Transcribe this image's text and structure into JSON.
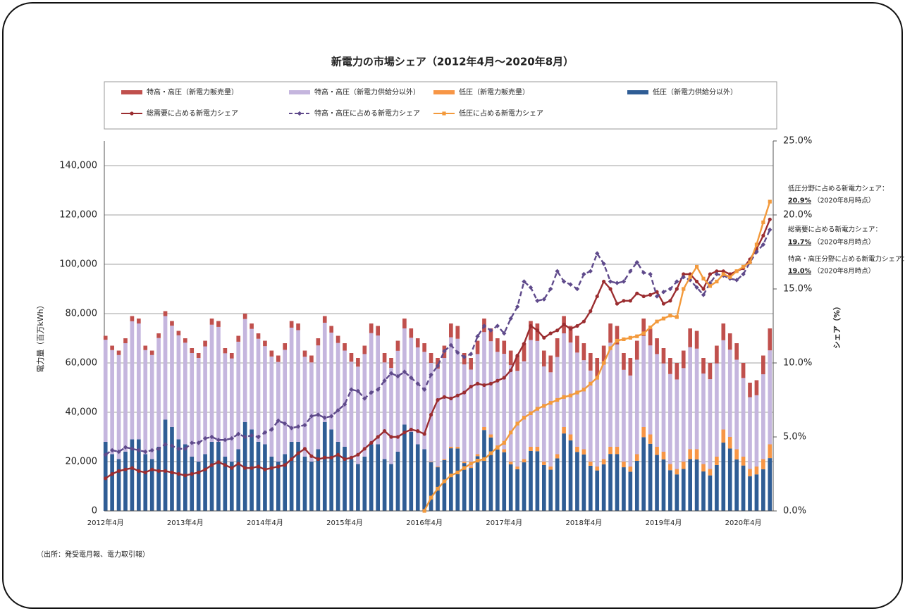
{
  "chart_data": {
    "type": "bar",
    "stacked": true,
    "title": "新電力の市場シェア（2012年4月～2020年8月）",
    "y_label": "電力量（百万kWh）",
    "y2_label": "シェア（%）",
    "source": "（出所：発受電月報、電力取引報）",
    "ylim": [
      0,
      150000
    ],
    "yticks": [
      0,
      {
        "value": 20000,
        "label": "20,000"
      },
      {
        "value": 40000,
        "label": "40,000"
      },
      {
        "value": 60000,
        "label": "60,000"
      },
      {
        "value": 80000,
        "label": "80,000"
      },
      {
        "value": 100000,
        "label": "100,000"
      },
      {
        "value": 120000,
        "label": "120,000"
      },
      {
        "value": 140000,
        "label": "140,000"
      }
    ],
    "y2lim": [
      0,
      25
    ],
    "y2ticks": [
      {
        "value": 0,
        "label": "0.0%"
      },
      {
        "value": 5,
        "label": "5.0%"
      },
      {
        "value": 10,
        "label": "10.0%"
      },
      {
        "value": 15,
        "label": "15.0%"
      },
      {
        "value": 20,
        "label": "20.0%"
      },
      {
        "value": 25,
        "label": "25.0%"
      }
    ],
    "grid": true,
    "categories": [
      "2012年4月",
      null,
      null,
      null,
      null,
      null,
      null,
      null,
      null,
      null,
      null,
      null,
      "2013年4月",
      null,
      null,
      null,
      null,
      null,
      null,
      null,
      null,
      null,
      null,
      null,
      "2014年4月",
      null,
      null,
      null,
      null,
      null,
      null,
      null,
      null,
      null,
      null,
      null,
      "2015年4月",
      null,
      null,
      null,
      null,
      null,
      null,
      null,
      null,
      null,
      null,
      null,
      "2016年4月",
      null,
      null,
      null,
      null,
      null,
      null,
      null,
      null,
      null,
      null,
      null,
      "2017年4月",
      null,
      null,
      null,
      null,
      null,
      null,
      null,
      null,
      null,
      null,
      null,
      "2018年4月",
      null,
      null,
      null,
      null,
      null,
      null,
      null,
      null,
      null,
      null,
      null,
      "2019年4月",
      null,
      null,
      null,
      null,
      null,
      null,
      null,
      null,
      null,
      null,
      null,
      "2020年4月",
      null,
      null,
      null,
      null
    ],
    "series": [
      {
        "name": "特高・高圧（新電力販売量）",
        "type": "bar",
        "color": "#c0504d",
        "values": [
          1600,
          1800,
          1800,
          2000,
          2100,
          2000,
          1800,
          1800,
          1900,
          2000,
          1900,
          1800,
          1800,
          2000,
          2000,
          2300,
          2500,
          2400,
          2100,
          2200,
          2400,
          2200,
          2200,
          2200,
          2200,
          2400,
          2600,
          2700,
          2700,
          2700,
          2500,
          2800,
          2900,
          2700,
          2700,
          2900,
          3000,
          3500,
          3500,
          3400,
          3900,
          3900,
          3800,
          4000,
          4100,
          4000,
          3800,
          3700,
          3500,
          4000,
          4300,
          5000,
          5600,
          5200,
          4600,
          4700,
          5400,
          5500,
          5200,
          5500,
          5300,
          5900,
          6200,
          7300,
          7700,
          7100,
          6400,
          6800,
          7600,
          7000,
          6700,
          6800,
          6900,
          7100,
          7700,
          7700,
          7800,
          7500,
          6800,
          7100,
          7700,
          7100,
          6900,
          6400,
          6200,
          6500,
          6700,
          7100,
          7600,
          7200,
          6300,
          6600,
          7200,
          6800,
          6600,
          6700,
          6100,
          5900,
          6100,
          7600,
          8900
        ]
      },
      {
        "name": "特高・高圧（新電力供給分以外）",
        "type": "bar",
        "color": "#c5b6de",
        "values": [
          41400,
          42200,
          42200,
          44000,
          47900,
          47000,
          42200,
          42200,
          44100,
          42000,
          41100,
          42200,
          41200,
          42000,
          42000,
          43700,
          47500,
          46600,
          41900,
          41800,
          43600,
          41800,
          40800,
          41800,
          39800,
          40600,
          40400,
          42300,
          46300,
          45300,
          40500,
          40200,
          42100,
          40300,
          39300,
          40100,
          39000,
          39500,
          39500,
          41600,
          45100,
          44100,
          39200,
          39000,
          40900,
          39000,
          38200,
          39300,
          39500,
          40000,
          39700,
          41000,
          44400,
          43800,
          39400,
          39300,
          40600,
          38500,
          37800,
          38500,
          38700,
          39100,
          38800,
          39700,
          43300,
          42900,
          38600,
          38200,
          39400,
          38000,
          37300,
          38200,
          36100,
          36900,
          36300,
          38300,
          42200,
          41500,
          37200,
          36900,
          38300,
          36900,
          36100,
          37600,
          35800,
          36500,
          36300,
          37900,
          41400,
          40800,
          36700,
          36400,
          37800,
          36200,
          35400,
          36300,
          31900,
          29100,
          28900,
          34400,
          38100
        ]
      },
      {
        "name": "低圧（新電力販売量）",
        "type": "bar",
        "color": "#f79646",
        "values": [
          0,
          0,
          0,
          0,
          0,
          0,
          0,
          0,
          0,
          0,
          0,
          0,
          0,
          0,
          0,
          0,
          0,
          0,
          0,
          0,
          0,
          0,
          0,
          0,
          0,
          0,
          0,
          0,
          0,
          0,
          0,
          0,
          0,
          0,
          0,
          0,
          0,
          0,
          0,
          0,
          0,
          0,
          0,
          0,
          0,
          0,
          0,
          0,
          0,
          200,
          300,
          400,
          600,
          700,
          600,
          600,
          800,
          1200,
          1200,
          1100,
          1200,
          1100,
          1100,
          1300,
          1700,
          1800,
          1400,
          1300,
          1700,
          2600,
          2400,
          2100,
          2100,
          1700,
          1600,
          2100,
          2900,
          3000,
          2300,
          2100,
          2700,
          4100,
          3800,
          3300,
          3100,
          2500,
          2200,
          3000,
          4000,
          4100,
          3000,
          2600,
          3400,
          5300,
          4700,
          4100,
          3600,
          2900,
          3200,
          4100,
          5600
        ]
      },
      {
        "name": "低圧（新電力供給分以外）",
        "type": "bar",
        "color": "#2f5d95",
        "values": [
          28000,
          23000,
          21000,
          24000,
          29000,
          29000,
          23000,
          21000,
          26000,
          37000,
          34000,
          29000,
          27000,
          22000,
          20000,
          23000,
          28000,
          28000,
          22000,
          20000,
          25000,
          36000,
          33000,
          28000,
          27000,
          22000,
          20000,
          23000,
          28000,
          28000,
          22000,
          20000,
          25000,
          36000,
          33000,
          28000,
          26000,
          21000,
          19000,
          22000,
          27000,
          27000,
          21000,
          19000,
          24000,
          35000,
          32000,
          27000,
          25000,
          19800,
          17700,
          20600,
          25400,
          25300,
          19400,
          17400,
          22200,
          32800,
          29800,
          24900,
          23800,
          18900,
          16900,
          19700,
          24300,
          24200,
          18600,
          16700,
          21300,
          31400,
          28600,
          23900,
          22900,
          18300,
          16400,
          18900,
          23100,
          23000,
          17700,
          15900,
          20300,
          29900,
          27200,
          22700,
          20900,
          16500,
          14800,
          17000,
          21000,
          20900,
          16000,
          14400,
          18600,
          27700,
          25300,
          20900,
          18400,
          14100,
          14800,
          16900,
          21400
        ]
      },
      {
        "name": "総需要に占める新電力シェア",
        "type": "line",
        "axis": "y2",
        "color": "#9b2d30",
        "dash": false,
        "marker": "circle",
        "values": [
          2.2,
          2.5,
          2.7,
          2.8,
          2.9,
          2.7,
          2.6,
          2.8,
          2.7,
          2.7,
          2.6,
          2.5,
          2.4,
          2.5,
          2.6,
          2.8,
          3.1,
          3.3,
          3.1,
          2.9,
          3.2,
          2.9,
          2.9,
          3.0,
          2.8,
          2.9,
          3.0,
          3.1,
          3.5,
          3.9,
          4.2,
          3.7,
          3.5,
          3.6,
          3.6,
          3.8,
          3.5,
          3.6,
          3.8,
          4.2,
          4.6,
          5.0,
          5.4,
          5.0,
          5.0,
          5.3,
          5.5,
          5.4,
          5.2,
          6.5,
          7.5,
          7.7,
          7.6,
          7.8,
          8.0,
          8.4,
          8.6,
          8.5,
          8.6,
          8.8,
          9.0,
          9.5,
          10.5,
          11.3,
          12.5,
          12.2,
          11.7,
          12.0,
          12.2,
          12.6,
          12.3,
          12.5,
          12.8,
          13.5,
          14.5,
          15.5,
          15.0,
          14.0,
          14.2,
          14.2,
          14.7,
          14.5,
          14.6,
          14.8,
          14.0,
          14.2,
          15.0,
          16.0,
          16.0,
          15.5,
          15.0,
          16.0,
          16.2,
          16.2,
          16.0,
          16.2,
          16.4,
          17.0,
          17.7,
          18.6,
          19.7
        ]
      },
      {
        "name": "特高・高圧に占める新電力シェア",
        "type": "line",
        "axis": "y2",
        "color": "#5f4a8b",
        "dash": true,
        "marker": "diamond",
        "values": [
          3.8,
          4.1,
          4.0,
          4.3,
          4.2,
          4.1,
          4.0,
          4.1,
          4.2,
          4.5,
          4.4,
          4.2,
          4.2,
          4.6,
          4.6,
          4.9,
          5.0,
          4.8,
          4.8,
          4.9,
          5.2,
          5.0,
          5.1,
          5.0,
          5.3,
          5.5,
          6.1,
          5.9,
          5.6,
          5.7,
          5.8,
          6.4,
          6.5,
          6.3,
          6.4,
          6.8,
          7.2,
          8.2,
          8.1,
          7.6,
          8.0,
          8.2,
          8.8,
          9.3,
          9.1,
          9.4,
          9.0,
          8.6,
          8.2,
          9.2,
          9.8,
          10.8,
          11.2,
          10.7,
          10.4,
          10.6,
          11.8,
          12.5,
          12.2,
          12.5,
          12.0,
          13.0,
          13.8,
          15.5,
          15.1,
          14.2,
          14.3,
          15.0,
          16.2,
          15.5,
          15.3,
          15.0,
          16.0,
          16.2,
          17.4,
          16.7,
          15.5,
          15.4,
          15.5,
          16.2,
          16.8,
          16.1,
          16.0,
          14.5,
          14.8,
          15.0,
          15.5,
          15.8,
          15.6,
          15.1,
          14.6,
          15.4,
          16.0,
          15.9,
          15.7,
          15.6,
          16.0,
          16.8,
          17.5,
          18.0,
          19.0
        ]
      },
      {
        "name": "低圧に占める新電力シェア",
        "type": "line",
        "axis": "y2",
        "color": "#f39a3c",
        "dash": false,
        "marker": "square",
        "values": [
          null,
          null,
          null,
          null,
          null,
          null,
          null,
          null,
          null,
          null,
          null,
          null,
          null,
          null,
          null,
          null,
          null,
          null,
          null,
          null,
          null,
          null,
          null,
          null,
          null,
          null,
          null,
          null,
          null,
          null,
          null,
          null,
          null,
          null,
          null,
          null,
          null,
          null,
          null,
          null,
          null,
          null,
          null,
          null,
          null,
          null,
          null,
          null,
          0.0,
          0.9,
          1.5,
          2.0,
          2.4,
          2.6,
          2.9,
          3.2,
          3.4,
          3.5,
          3.9,
          4.3,
          4.6,
          5.3,
          5.9,
          6.3,
          6.6,
          6.9,
          7.1,
          7.3,
          7.5,
          7.7,
          7.8,
          8.0,
          8.2,
          8.6,
          9.0,
          10.0,
          11.0,
          11.5,
          11.6,
          11.7,
          11.8,
          12.0,
          12.4,
          12.8,
          13.0,
          13.2,
          13.1,
          15.0,
          15.8,
          16.5,
          15.7,
          15.2,
          15.5,
          16.0,
          15.8,
          16.2,
          16.5,
          16.8,
          18.0,
          19.5,
          20.9
        ]
      }
    ],
    "annotations": [
      {
        "label": "低圧分野に占める新電力シェア：",
        "value": "20.9%",
        "note": "（2020年8月時点）",
        "color": "#f39a3c"
      },
      {
        "label": "総需要に占める新電力シェア：",
        "value": "19.7%",
        "note": "（2020年8月時点）",
        "color": "#9b2d30"
      },
      {
        "label": "特高・高圧分野に占める新電力シェア：",
        "value": "19.0%",
        "note": "（2020年8月時点）",
        "color": "#5f4a8b"
      }
    ]
  }
}
